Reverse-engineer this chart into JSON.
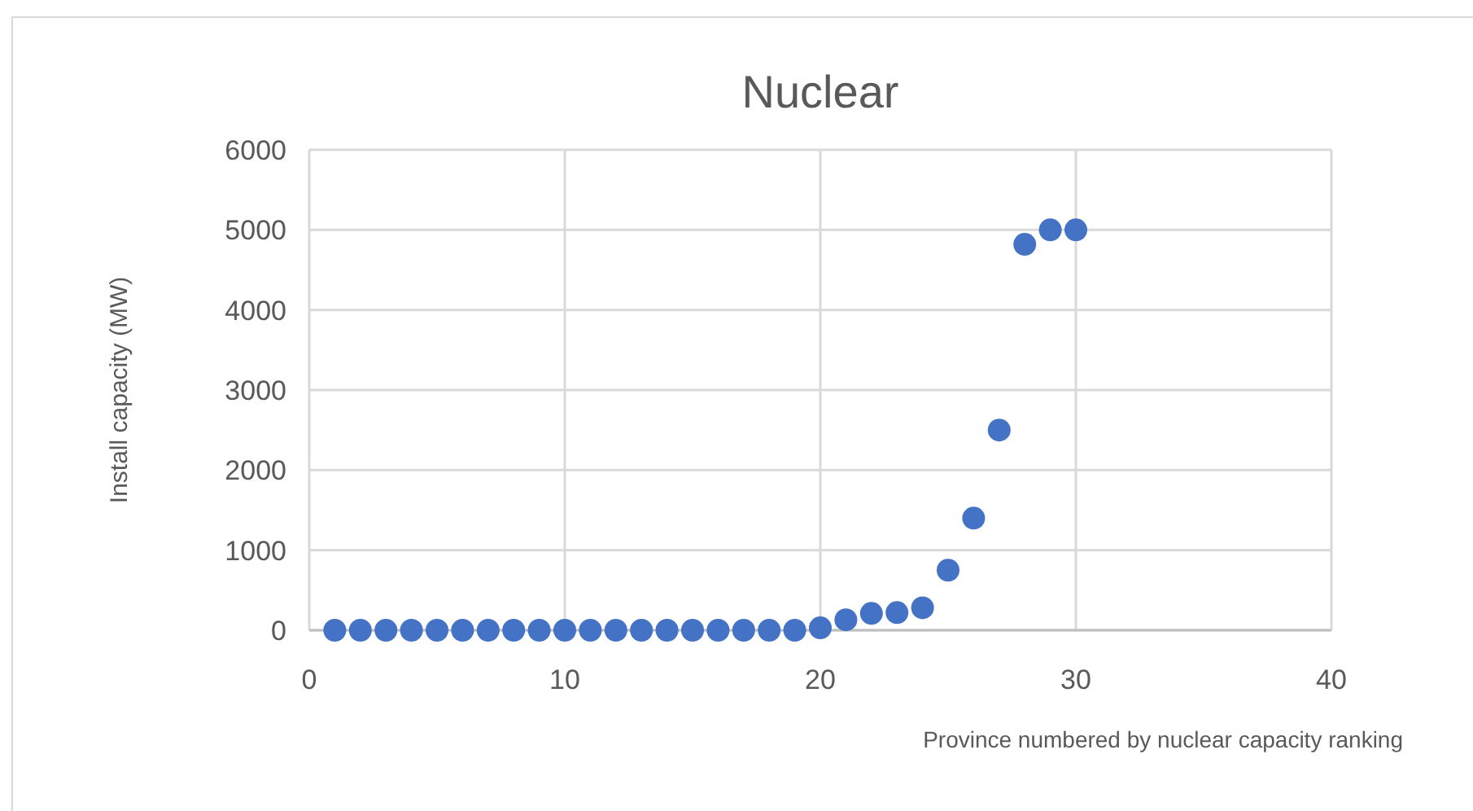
{
  "chart_data": {
    "type": "scatter",
    "title": "Nuclear",
    "xlabel": "Province numbered by nuclear capacity ranking",
    "ylabel": "Install capacity (MW)",
    "x": [
      1,
      2,
      3,
      4,
      5,
      6,
      7,
      8,
      9,
      10,
      11,
      12,
      13,
      14,
      15,
      16,
      17,
      18,
      19,
      20,
      21,
      22,
      23,
      24,
      25,
      26,
      27,
      28,
      29,
      30
    ],
    "values": [
      0,
      0,
      0,
      0,
      0,
      0,
      0,
      0,
      0,
      0,
      0,
      0,
      0,
      0,
      0,
      0,
      0,
      0,
      0,
      30,
      130,
      210,
      220,
      280,
      750,
      1400,
      2500,
      4820,
      5000,
      5000
    ],
    "color": "#4472c4",
    "xlim": [
      0,
      40
    ],
    "xticks": [
      0,
      10,
      20,
      30,
      40
    ],
    "ylim": [
      0,
      6000
    ],
    "yticks": [
      0,
      1000,
      2000,
      3000,
      4000,
      5000,
      6000
    ],
    "grid": true,
    "marker": "circle"
  }
}
